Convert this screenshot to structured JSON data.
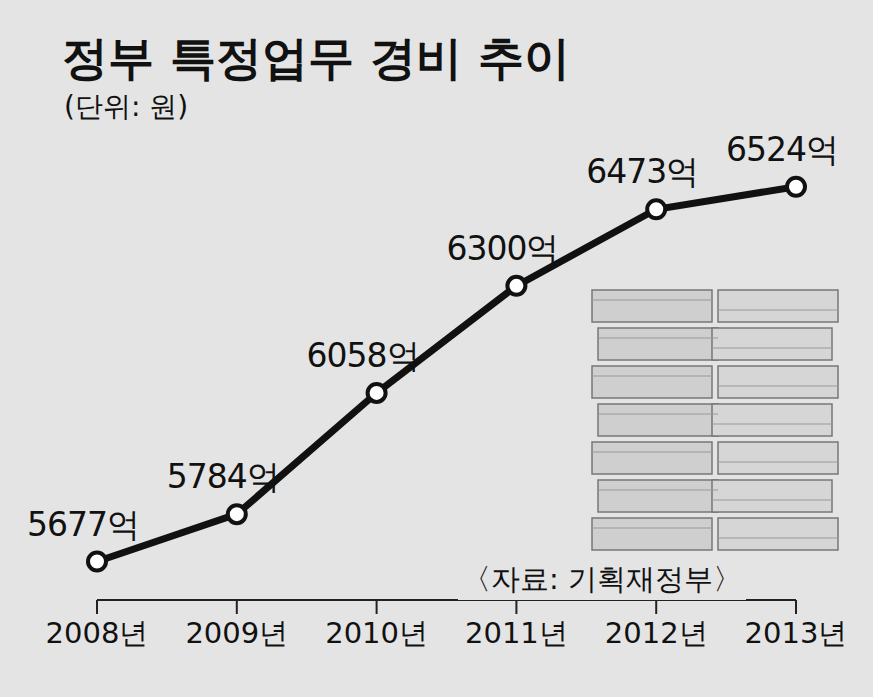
{
  "chart_data": {
    "type": "line",
    "title": "정부 특정업무 경비 추이",
    "subtitle": "(단위: 원)",
    "source": "〈자료: 기획재정부〉",
    "categories": [
      "2008년",
      "2009년",
      "2010년",
      "2011년",
      "2012년",
      "2013년"
    ],
    "values": [
      5677,
      5784,
      6058,
      6300,
      6473,
      6524
    ],
    "value_labels": [
      "5677억",
      "5784억",
      "6058억",
      "6300억",
      "6473억",
      "6524억"
    ],
    "color": "#111111",
    "ylim": [
      5590,
      6720
    ],
    "data_labels": true,
    "tick_labels": "x",
    "grid": false,
    "marker": "circle"
  }
}
